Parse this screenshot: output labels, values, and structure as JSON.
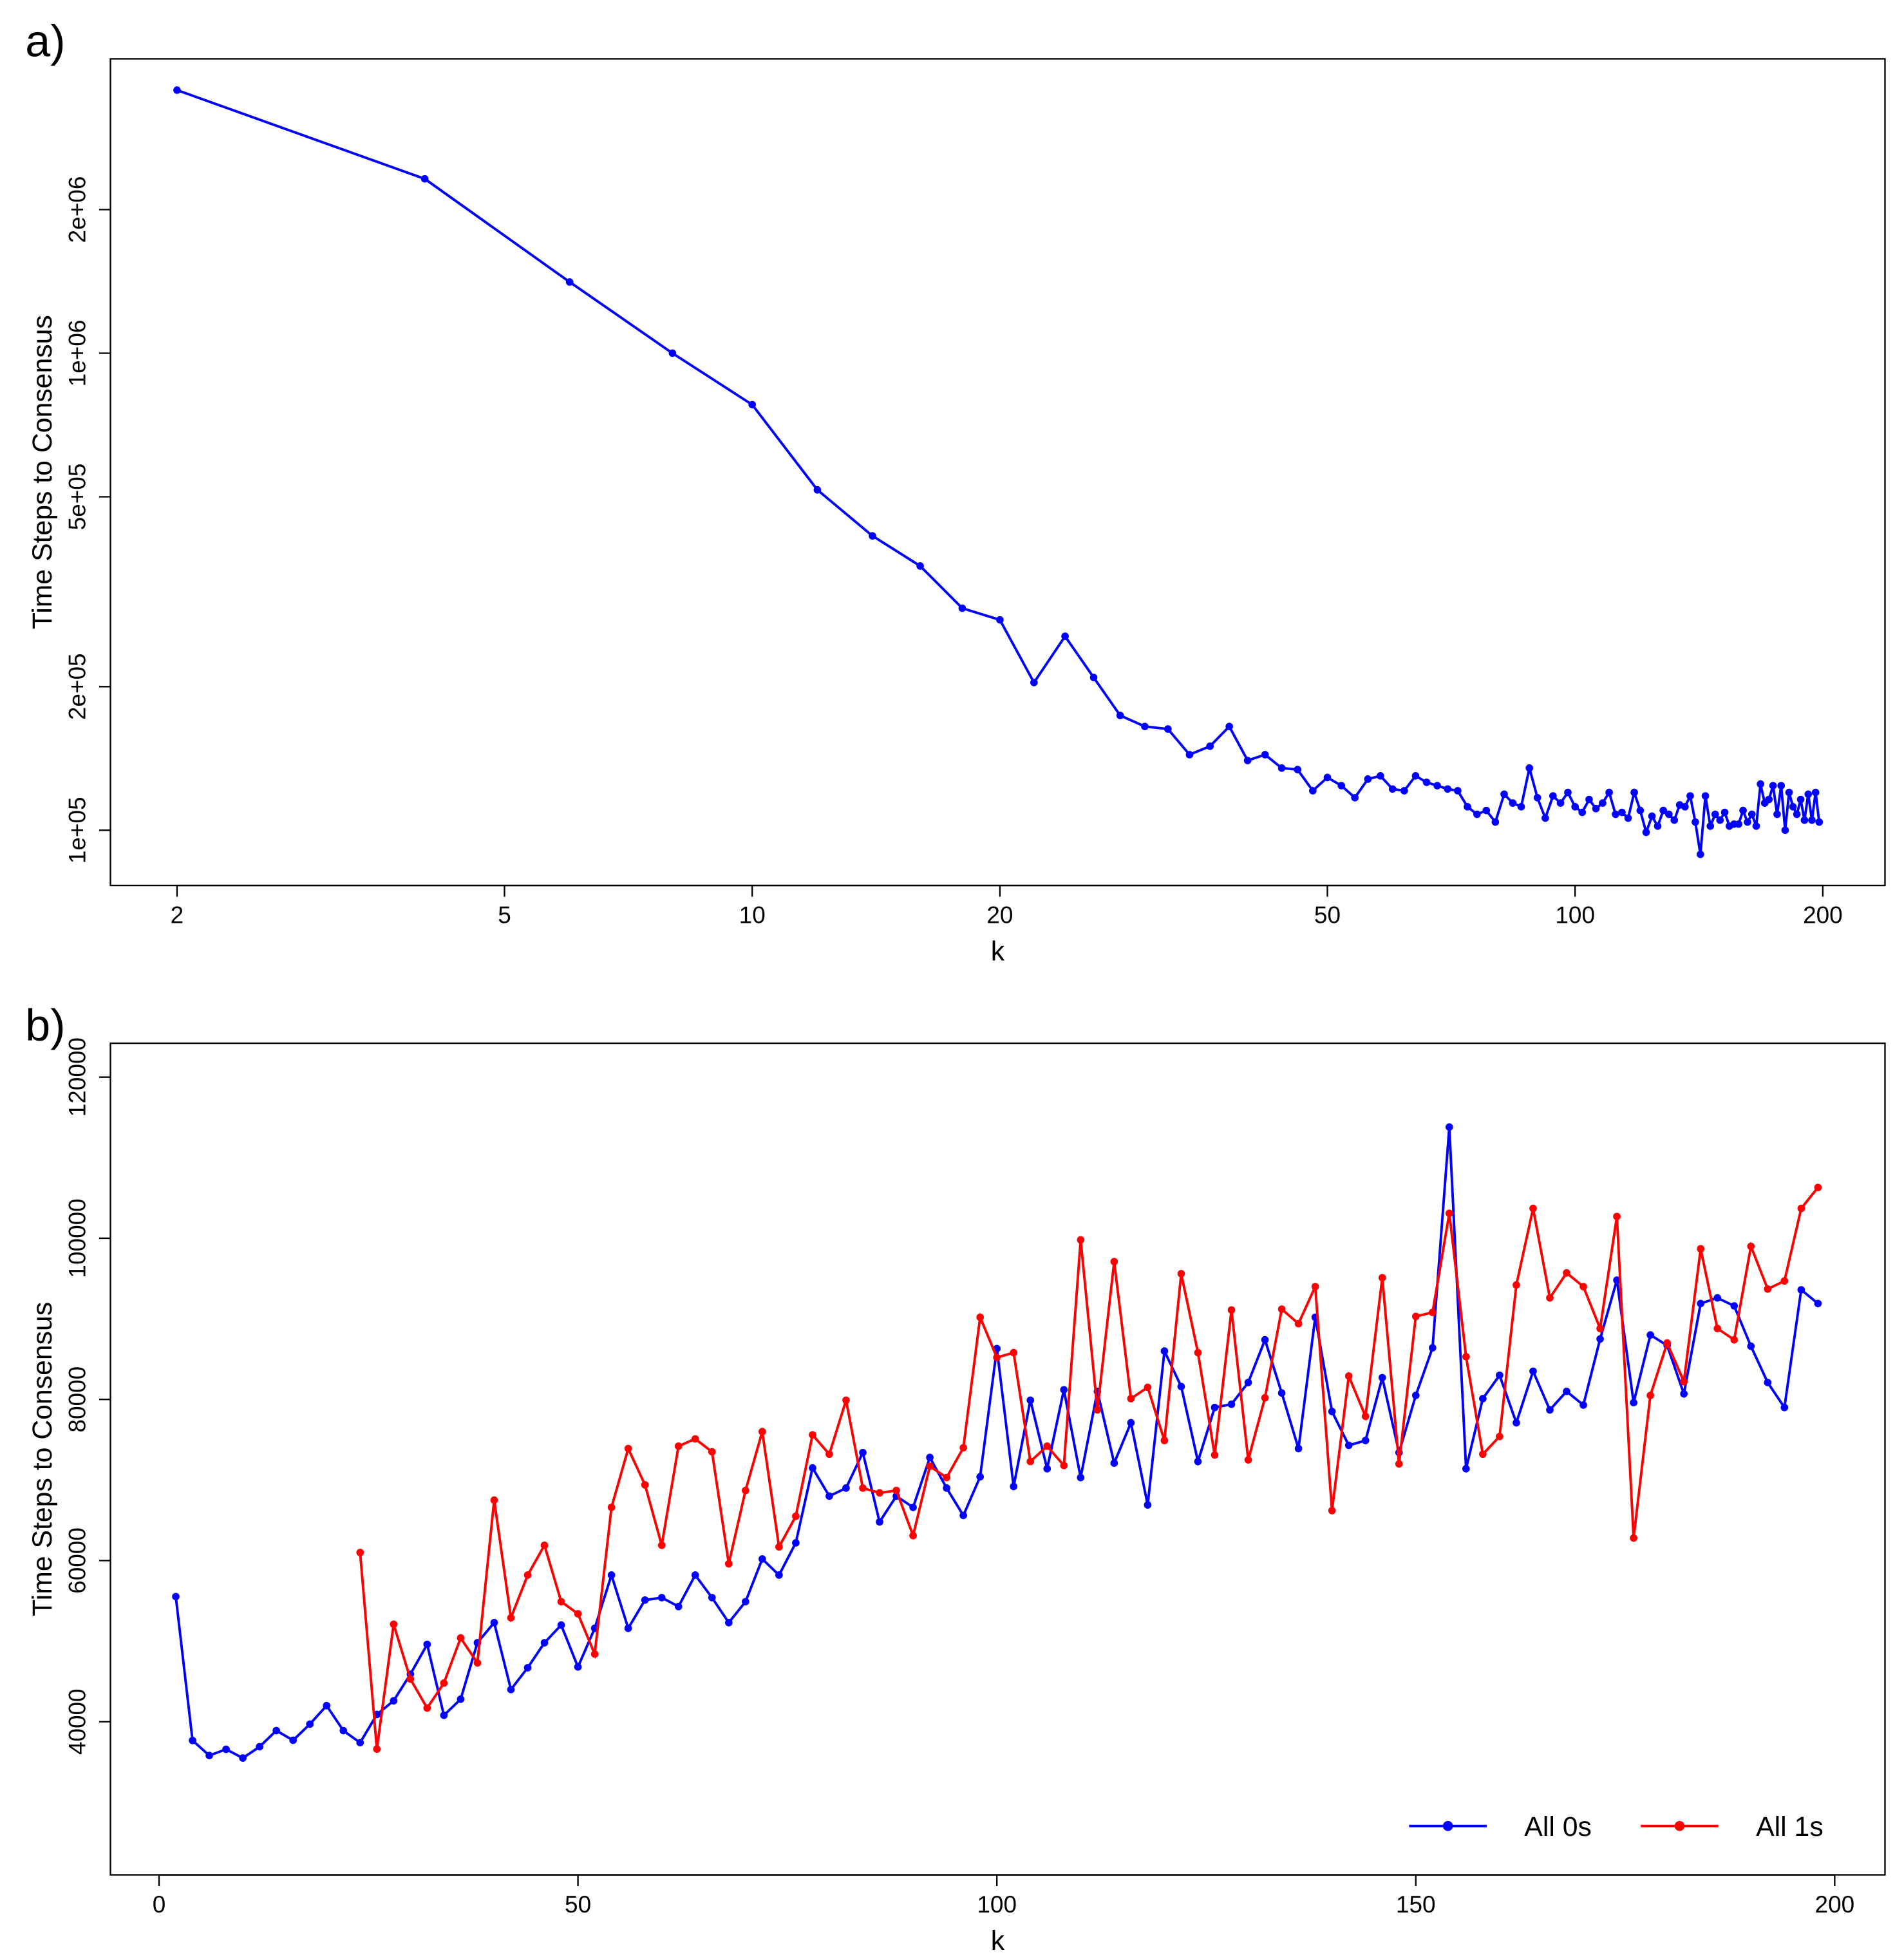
{
  "chart_data": [
    {
      "type": "line",
      "panel_label": "a)",
      "xlabel": "k",
      "ylabel": "Time Steps to Consensus",
      "xlog": true,
      "ylog": true,
      "xlim": [
        1.66,
        238
      ],
      "ylim": [
        76600,
        4140000
      ],
      "xticks": [
        2,
        5,
        10,
        20,
        50,
        100,
        200
      ],
      "yticks": [
        {
          "value": 100000,
          "label": "1e+05"
        },
        {
          "value": 200000,
          "label": "2e+05"
        },
        {
          "value": 500000,
          "label": "5e+05"
        },
        {
          "value": 1000000,
          "label": "1e+06"
        },
        {
          "value": 2000000,
          "label": "2e+06"
        }
      ],
      "x": [
        2,
        4,
        6,
        8,
        10,
        12,
        14,
        16,
        18,
        20,
        22,
        24,
        26,
        28,
        30,
        32,
        34,
        36,
        38,
        40,
        42,
        44,
        46,
        48,
        50,
        52,
        54,
        56,
        58,
        60,
        62,
        64,
        66,
        68,
        70,
        72,
        74,
        76,
        78,
        80,
        82,
        84,
        86,
        88,
        90,
        92,
        94,
        96,
        98,
        100,
        102,
        104,
        106,
        108,
        110,
        112,
        114,
        116,
        118,
        120,
        122,
        124,
        126,
        128,
        130,
        132,
        134,
        136,
        138,
        140,
        142,
        144,
        146,
        148,
        150,
        152,
        154,
        156,
        158,
        160,
        162,
        164,
        166,
        168,
        170,
        172,
        174,
        176,
        178,
        180,
        182,
        184,
        186,
        188,
        190,
        192,
        194,
        196,
        198
      ],
      "series": [
        {
          "name": "All 0s",
          "color": "#0000ff",
          "values": [
            3560000,
            2320000,
            1410000,
            1000000,
            780000,
            517000,
            414000,
            358000,
            292000,
            276000,
            204000,
            255000,
            209000,
            174000,
            165000,
            163000,
            144000,
            150000,
            165000,
            140000,
            144000,
            135000,
            134000,
            121000,
            129000,
            124000,
            117000,
            128000,
            130000,
            122000,
            121000,
            130000,
            126000,
            124000,
            122000,
            121000,
            112000,
            108000,
            110000,
            104000,
            119000,
            114000,
            112000,
            135000,
            117000,
            106000,
            118000,
            114000,
            120000,
            112000,
            109000,
            116000,
            111000,
            114000,
            120000,
            108000,
            109000,
            106000,
            120000,
            110000,
            99000,
            107000,
            102000,
            110000,
            108000,
            105000,
            113000,
            112000,
            118000,
            104000,
            89000,
            118000,
            102000,
            108000,
            105000,
            109000,
            102000,
            103000,
            103000,
            110000,
            104000,
            108000,
            102000,
            125000,
            114000,
            116000,
            124000,
            108000,
            124000,
            100000,
            120000,
            112000,
            108000,
            116000,
            105000,
            119000,
            105000,
            120000,
            104000
          ]
        }
      ]
    },
    {
      "type": "line",
      "panel_label": "b)",
      "xlabel": "k",
      "ylabel": "Time Steps to Consensus",
      "legend": "bottom right",
      "xlim": [
        -5.8,
        206
      ],
      "ylim": [
        21000,
        124200
      ],
      "xticks": [
        0,
        50,
        100,
        150,
        200
      ],
      "yticks": [
        40000,
        60000,
        80000,
        100000,
        120000
      ],
      "x": [
        2,
        4,
        6,
        8,
        10,
        12,
        14,
        16,
        18,
        20,
        22,
        24,
        26,
        28,
        30,
        32,
        34,
        36,
        38,
        40,
        42,
        44,
        46,
        48,
        50,
        52,
        54,
        56,
        58,
        60,
        62,
        64,
        66,
        68,
        70,
        72,
        74,
        76,
        78,
        80,
        82,
        84,
        86,
        88,
        90,
        92,
        94,
        96,
        98,
        100,
        102,
        104,
        106,
        108,
        110,
        112,
        114,
        116,
        118,
        120,
        122,
        124,
        126,
        128,
        130,
        132,
        134,
        136,
        138,
        140,
        142,
        144,
        146,
        148,
        150,
        152,
        154,
        156,
        158,
        160,
        162,
        164,
        166,
        168,
        170,
        172,
        174,
        176,
        178,
        180,
        182,
        184,
        186,
        188,
        190,
        192,
        194,
        196,
        198
      ],
      "series": [
        {
          "name": "All 0s",
          "color": "#0000ff",
          "values": [
            55530,
            37670,
            35810,
            36580,
            35500,
            36900,
            38900,
            37700,
            39700,
            42000,
            38900,
            37400,
            40900,
            42600,
            45900,
            49600,
            40800,
            42800,
            49800,
            52300,
            44000,
            46700,
            49800,
            52000,
            46800,
            51600,
            58200,
            51600,
            55100,
            55400,
            54300,
            58200,
            55400,
            52300,
            54900,
            60200,
            58200,
            62200,
            71500,
            68000,
            69000,
            73400,
            64800,
            68000,
            66600,
            72800,
            69000,
            65600,
            70400,
            86300,
            69200,
            79900,
            71400,
            81200,
            70300,
            81000,
            72100,
            77100,
            66900,
            86000,
            81600,
            72300,
            79000,
            79400,
            82100,
            87400,
            80800,
            73900,
            90200,
            78500,
            74300,
            74900,
            82700,
            73400,
            80500,
            86400,
            113800,
            71400,
            80100,
            83000,
            77100,
            83500,
            78700,
            81000,
            79300,
            87500,
            94800,
            79600,
            88000,
            86700,
            80700,
            91900,
            92600,
            91600,
            86600,
            82100,
            79000,
            93600,
            91900
          ]
        },
        {
          "name": "All 1s",
          "color": "#ff0000",
          "values": [
            null,
            null,
            null,
            null,
            null,
            null,
            null,
            null,
            null,
            null,
            null,
            61000,
            36600,
            52100,
            45300,
            41700,
            44800,
            50400,
            47300,
            67500,
            52900,
            58200,
            61900,
            54900,
            53400,
            48400,
            66600,
            73900,
            69400,
            61900,
            74200,
            75100,
            73500,
            59600,
            68700,
            76000,
            61700,
            65500,
            75600,
            73200,
            79900,
            69000,
            68400,
            68700,
            63100,
            71700,
            70300,
            74000,
            90200,
            85200,
            85800,
            72300,
            74200,
            71800,
            99800,
            78700,
            97100,
            80100,
            81500,
            74900,
            95600,
            85800,
            73100,
            91100,
            72500,
            80200,
            91200,
            89400,
            94000,
            66200,
            82900,
            77900,
            95100,
            72000,
            90300,
            90800,
            103100,
            85300,
            73200,
            75400,
            94200,
            103700,
            92600,
            95700,
            94000,
            88800,
            102700,
            62800,
            80500,
            87000,
            82200,
            98700,
            88800,
            87400,
            99000,
            93700,
            94700,
            103700,
            106300
          ]
        }
      ]
    }
  ]
}
